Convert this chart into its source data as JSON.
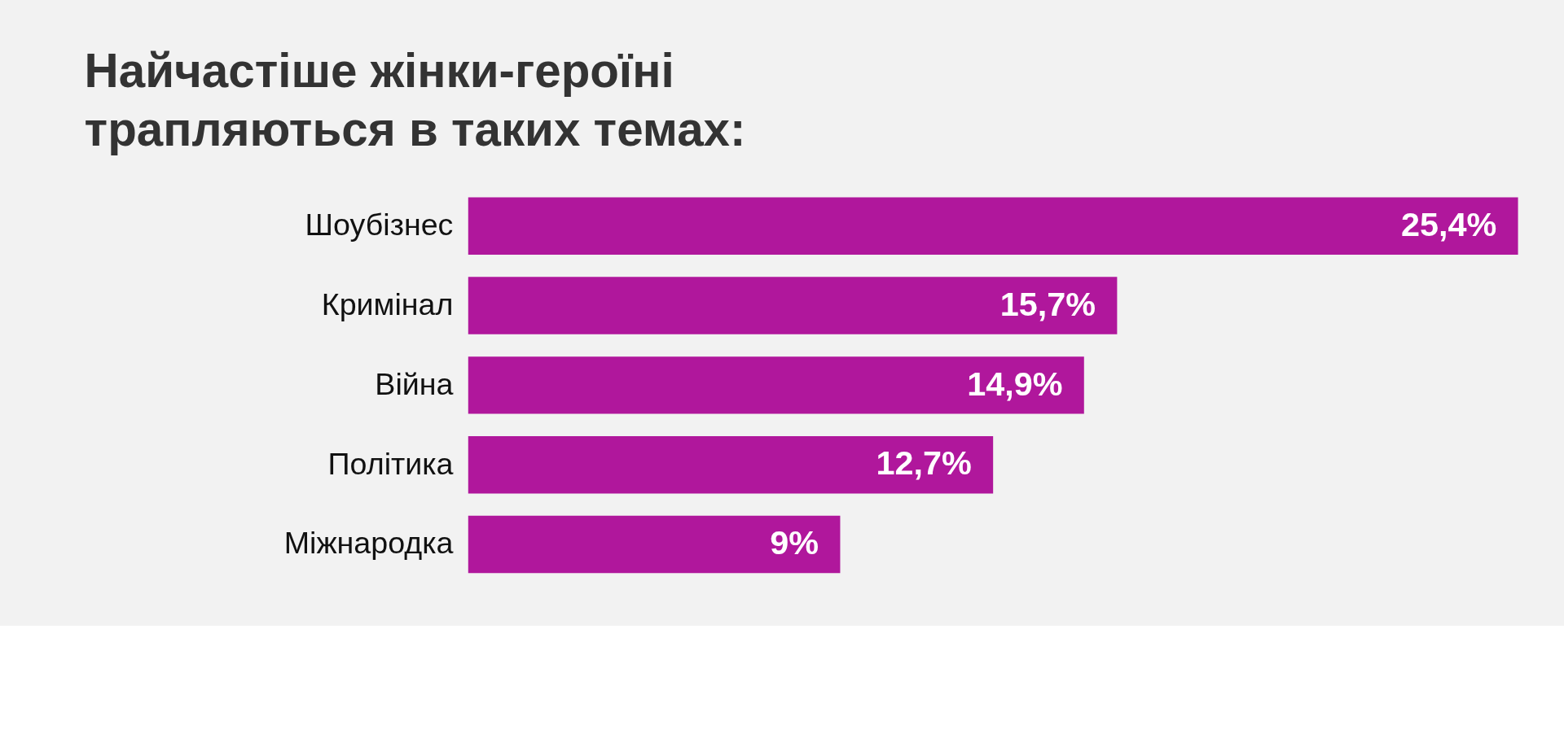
{
  "chart_data": {
    "type": "bar",
    "orientation": "horizontal",
    "title": "Найчастіше жінки-героїні трапляються в таких темах:",
    "categories": [
      "Шоубізнес",
      "Кримінал",
      "Війна",
      "Політика",
      "Міжнародка"
    ],
    "series": [
      {
        "color": "#b0179c",
        "values": [
          25.4,
          15.7,
          14.9,
          12.7,
          9
        ],
        "value_labels": [
          "25,4%",
          "15,7%",
          "14,9%",
          "12,7%",
          "9%"
        ]
      }
    ]
  }
}
